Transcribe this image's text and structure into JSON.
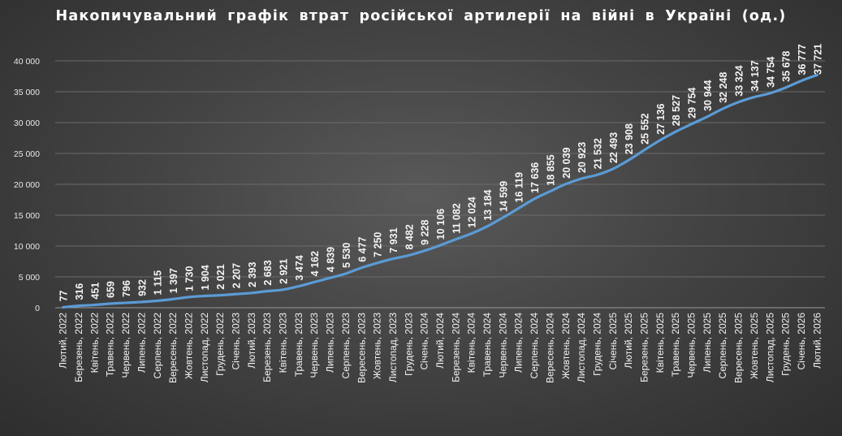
{
  "chart_data": {
    "type": "line",
    "title": "Накопичувальний  графік  втрат  російської  артилерії  на  війні  в  Україні  (од.)",
    "xlabel": "",
    "ylabel": "",
    "ylim": [
      0,
      40000
    ],
    "yticks": [
      "0",
      "5 000",
      "10 000",
      "15 000",
      "20 000",
      "25 000",
      "30 000",
      "35 000",
      "40 000"
    ],
    "grid": true,
    "legend": "none",
    "line_color": "#5b9bd5",
    "categories": [
      "Лютий, 2022",
      "Березень, 2022",
      "Квітень, 2022",
      "Травень, 2022",
      "Червень, 2022",
      "Липень, 2022",
      "Серпень, 2022",
      "Вересень, 2022",
      "Жовтень, 2022",
      "Листопад, 2022",
      "Грудень, 2022",
      "Січень, 2023",
      "Лютий, 2023",
      "Березень, 2023",
      "Квітень, 2023",
      "Травень, 2023",
      "Червень, 2023",
      "Липень, 2023",
      "Серпень, 2023",
      "Вересень, 2023",
      "Жовтень, 2023",
      "Листопад, 2023",
      "Грудень, 2023",
      "Січень, 2024",
      "Лютий, 2024",
      "Березень, 2024",
      "Квітень, 2024",
      "Травень, 2024",
      "Червень, 2024",
      "Липень, 2024",
      "Серпень, 2024",
      "Вересень, 2024",
      "Жовтень, 2024",
      "Листопад, 2024",
      "Грудень, 2024",
      "Січень, 2025",
      "Лютий, 2025",
      "Березень, 2025",
      "Квітень, 2025",
      "Травень, 2025",
      "Червень, 2025",
      "Липень, 2025",
      "Серпень, 2025",
      "Вересень, 2025",
      "Жовтень, 2025",
      "Листопад, 2025",
      "Грудень, 2025",
      "Січень, 2026",
      "Лютий, 2026"
    ],
    "values": [
      77,
      316,
      451,
      659,
      796,
      932,
      1115,
      1397,
      1730,
      1904,
      2021,
      2207,
      2393,
      2683,
      2921,
      3474,
      4162,
      4839,
      5530,
      6477,
      7250,
      7931,
      8482,
      9228,
      10106,
      11082,
      12024,
      13184,
      14599,
      16119,
      17636,
      18855,
      20039,
      20923,
      21532,
      22493,
      23908,
      25552,
      27136,
      28527,
      29754,
      30944,
      32248,
      33324,
      34137,
      34754,
      35678,
      36777,
      37721
    ],
    "data_labels": [
      "77",
      "316",
      "451",
      "659",
      "796",
      "932",
      "1 115",
      "1 397",
      "1 730",
      "1 904",
      "2 021",
      "2 207",
      "2 393",
      "2 683",
      "2 921",
      "3 474",
      "4 162",
      "4 839",
      "5 530",
      "6 477",
      "7 250",
      "7 931",
      "8 482",
      "9 228",
      "10 106",
      "11 082",
      "12 024",
      "13 184",
      "14 599",
      "16 119",
      "17 636",
      "18 855",
      "20 039",
      "20 923",
      "21 532",
      "22 493",
      "23 908",
      "25 552",
      "27 136",
      "28 527",
      "29 754",
      "30 944",
      "32 248",
      "33 324",
      "34 137",
      "34 754",
      "35 678",
      "36 777",
      "37 721"
    ]
  }
}
